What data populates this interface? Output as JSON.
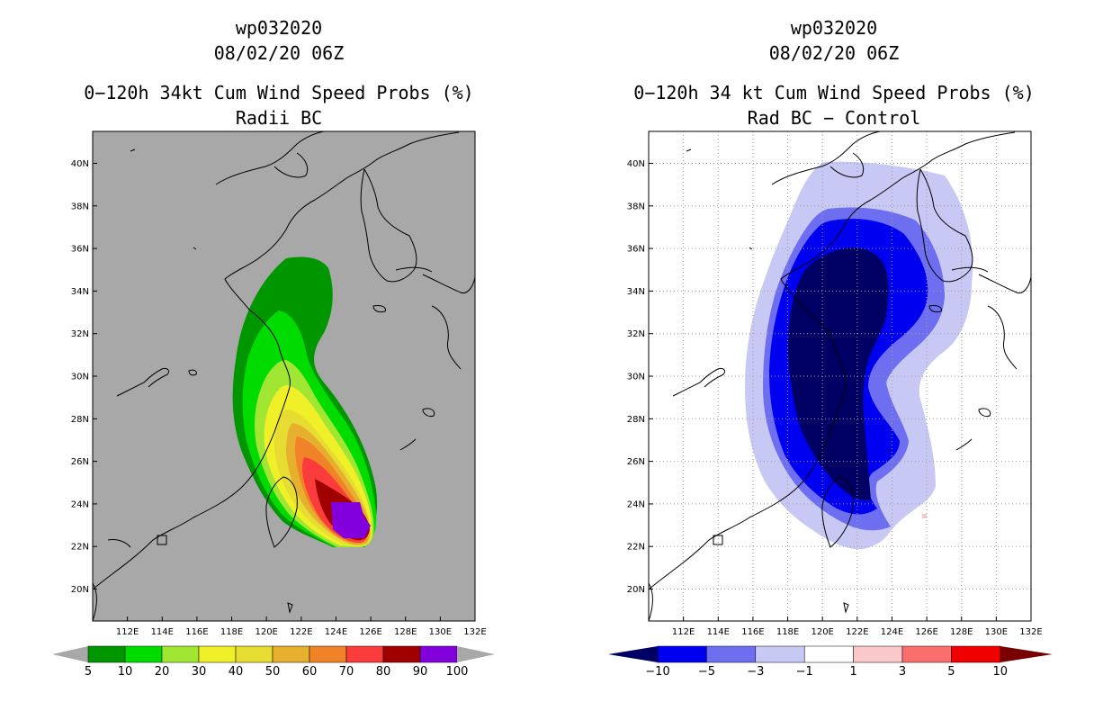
{
  "chart_data": [
    {
      "type": "heatmap",
      "storm_id": "wp032020",
      "datetime": "08/02/20 06Z",
      "title": "0−120h 34kt Cum Wind Speed Probs (%)",
      "subtitle": "Radii BC",
      "xlim": [
        110,
        132
      ],
      "ylim": [
        18.5,
        41.5
      ],
      "xticks": [
        "112E",
        "114E",
        "116E",
        "118E",
        "120E",
        "122E",
        "124E",
        "126E",
        "128E",
        "130E",
        "132E"
      ],
      "yticks": [
        "20N",
        "22N",
        "24N",
        "26N",
        "28N",
        "30N",
        "32N",
        "34N",
        "36N",
        "38N",
        "40N"
      ],
      "grid": false,
      "background": "#a8a8a8",
      "colorbar": {
        "levels": [
          "5",
          "10",
          "20",
          "30",
          "40",
          "50",
          "60",
          "70",
          "80",
          "90",
          "100"
        ],
        "colors": [
          "#009600",
          "#00dc00",
          "#a0e632",
          "#f0f028",
          "#e6dc32",
          "#e6af2d",
          "#f08228",
          "#fa3c3c",
          "#a00000",
          "#8200dc"
        ]
      },
      "contours_percent": [
        5,
        10,
        20,
        30,
        40,
        50,
        60,
        70,
        80,
        90
      ],
      "max_region": "approx. 22.5N-24.5N, 124E-126E (>=90%)"
    },
    {
      "type": "heatmap",
      "storm_id": "wp032020",
      "datetime": "08/02/20 06Z",
      "title": "0−120h 34 kt Cum Wind Speed Probs (%)",
      "subtitle": "Rad BC − Control",
      "xlim": [
        110,
        132
      ],
      "ylim": [
        18.5,
        41.5
      ],
      "xticks": [
        "112E",
        "114E",
        "116E",
        "118E",
        "120E",
        "122E",
        "124E",
        "126E",
        "128E",
        "130E",
        "132E"
      ],
      "yticks": [
        "20N",
        "22N",
        "24N",
        "26N",
        "28N",
        "30N",
        "32N",
        "34N",
        "36N",
        "38N",
        "40N"
      ],
      "grid": true,
      "background": "#ffffff",
      "colorbar": {
        "levels": [
          "−10",
          "−5",
          "−3",
          "−1",
          "1",
          "3",
          "5",
          "10"
        ],
        "colors": [
          "#000064",
          "#0000f0",
          "#6e6ef0",
          "#c8c8f5",
          "#ffffff",
          "#fac8c8",
          "#fa6e6e",
          "#f00000",
          "#780000"
        ]
      },
      "difference_percent": [
        -10,
        -5,
        -3,
        -1
      ],
      "min_region": "approx. 24N-36N, 118E-123E (<=-10%)"
    }
  ]
}
